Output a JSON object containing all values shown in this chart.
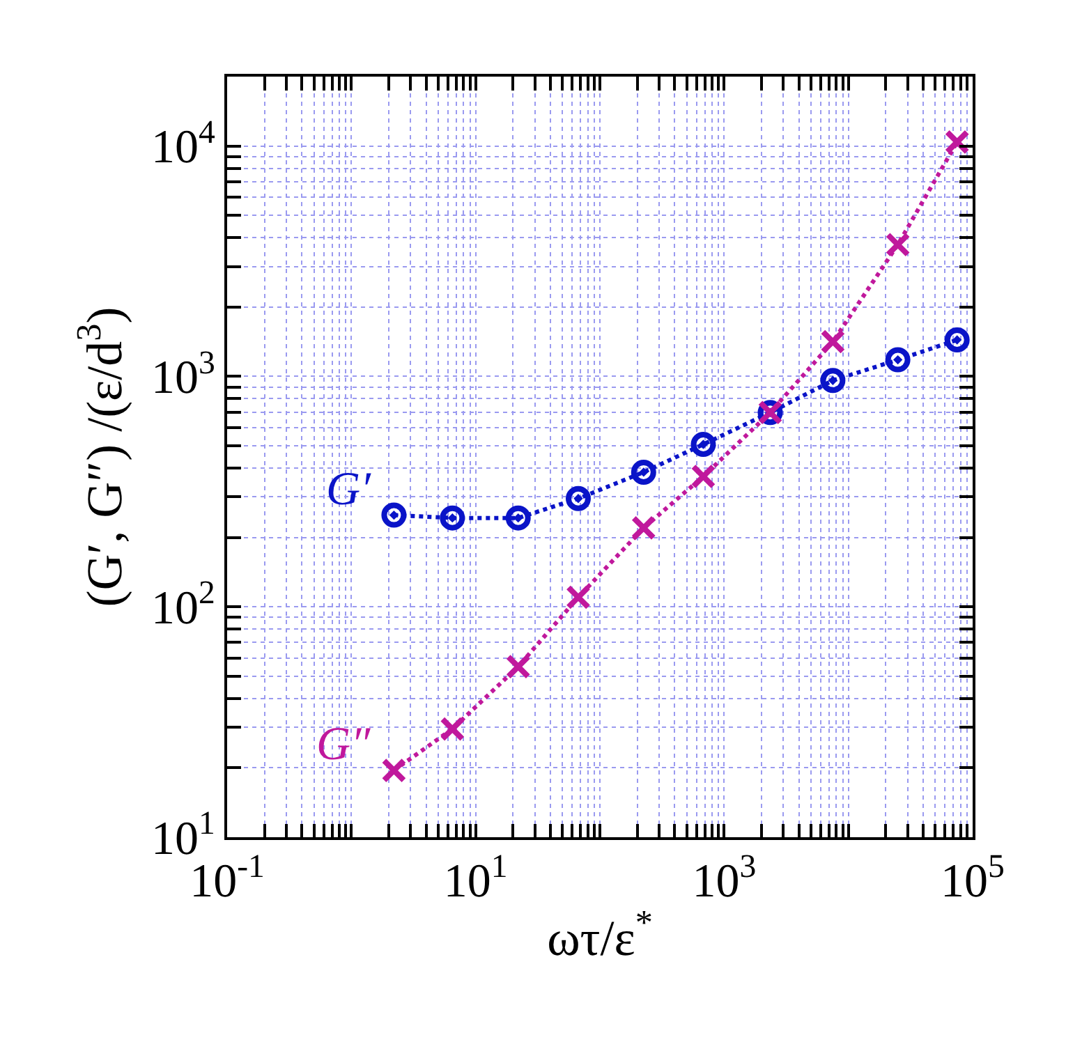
{
  "chart_data": {
    "type": "line",
    "xlabel": "ωτ/ε$^{*}$",
    "ylabel": "(G′, G″) /(ε/d$^{3}$)",
    "x": [
      2.2,
      6.5,
      22,
      67,
      225,
      680,
      2350,
      7500,
      25000,
      75000
    ],
    "series": [
      {
        "name": "G′",
        "color": "#0a14c8",
        "marker": "circle",
        "values": [
          250,
          243,
          243,
          295,
          384,
          507,
          697,
          960,
          1180,
          1440
        ]
      },
      {
        "name": "G″",
        "color": "#c0189c",
        "marker": "cross",
        "values": [
          19.5,
          29.5,
          55,
          110,
          220,
          368,
          697,
          1415,
          3730,
          10400
        ]
      }
    ],
    "log": "xy",
    "line_style": "dotted",
    "grid": true,
    "legend": false,
    "xlim": [
      0.1,
      100000
    ],
    "ylim": [
      10,
      20000
    ],
    "xticks": [
      {
        "value": 0.1,
        "label": "10$^{-1}$"
      },
      {
        "value": 0.2,
        "label": null
      },
      {
        "value": 0.3,
        "label": null
      },
      {
        "value": 0.4,
        "label": null
      },
      {
        "value": 0.5,
        "label": null
      },
      {
        "value": 0.6,
        "label": null
      },
      {
        "value": 0.7,
        "label": null
      },
      {
        "value": 0.8,
        "label": null
      },
      {
        "value": 0.9,
        "label": null
      },
      {
        "value": 1,
        "label": null
      },
      {
        "value": 2,
        "label": null
      },
      {
        "value": 3,
        "label": null
      },
      {
        "value": 4,
        "label": null
      },
      {
        "value": 5,
        "label": null
      },
      {
        "value": 6,
        "label": null
      },
      {
        "value": 7,
        "label": null
      },
      {
        "value": 8,
        "label": null
      },
      {
        "value": 9,
        "label": null
      },
      {
        "value": 10,
        "label": "10$^{1}$"
      },
      {
        "value": 20,
        "label": null
      },
      {
        "value": 30,
        "label": null
      },
      {
        "value": 40,
        "label": null
      },
      {
        "value": 50,
        "label": null
      },
      {
        "value": 60,
        "label": null
      },
      {
        "value": 70,
        "label": null
      },
      {
        "value": 80,
        "label": null
      },
      {
        "value": 90,
        "label": null
      },
      {
        "value": 100,
        "label": null
      },
      {
        "value": 200,
        "label": null
      },
      {
        "value": 300,
        "label": null
      },
      {
        "value": 400,
        "label": null
      },
      {
        "value": 500,
        "label": null
      },
      {
        "value": 600,
        "label": null
      },
      {
        "value": 700,
        "label": null
      },
      {
        "value": 800,
        "label": null
      },
      {
        "value": 900,
        "label": null
      },
      {
        "value": 1000,
        "label": "10$^{3}$"
      },
      {
        "value": 2000,
        "label": null
      },
      {
        "value": 3000,
        "label": null
      },
      {
        "value": 4000,
        "label": null
      },
      {
        "value": 5000,
        "label": null
      },
      {
        "value": 6000,
        "label": null
      },
      {
        "value": 7000,
        "label": null
      },
      {
        "value": 8000,
        "label": null
      },
      {
        "value": 9000,
        "label": null
      },
      {
        "value": 10000,
        "label": null
      },
      {
        "value": 20000,
        "label": null
      },
      {
        "value": 30000,
        "label": null
      },
      {
        "value": 40000,
        "label": null
      },
      {
        "value": 50000,
        "label": null
      },
      {
        "value": 60000,
        "label": null
      },
      {
        "value": 70000,
        "label": null
      },
      {
        "value": 80000,
        "label": null
      },
      {
        "value": 90000,
        "label": null
      },
      {
        "value": 100000,
        "label": "10$^{5}$"
      }
    ],
    "yticks": [
      {
        "value": 10,
        "label": "10$^{1}$"
      },
      {
        "value": 20,
        "label": null
      },
      {
        "value": 30,
        "label": null
      },
      {
        "value": 40,
        "label": null
      },
      {
        "value": 50,
        "label": null
      },
      {
        "value": 60,
        "label": null
      },
      {
        "value": 70,
        "label": null
      },
      {
        "value": 80,
        "label": null
      },
      {
        "value": 90,
        "label": null
      },
      {
        "value": 100,
        "label": "10$^{2}$"
      },
      {
        "value": 200,
        "label": null
      },
      {
        "value": 300,
        "label": null
      },
      {
        "value": 400,
        "label": null
      },
      {
        "value": 500,
        "label": null
      },
      {
        "value": 600,
        "label": null
      },
      {
        "value": 700,
        "label": null
      },
      {
        "value": 800,
        "label": null
      },
      {
        "value": 900,
        "label": null
      },
      {
        "value": 1000,
        "label": "10$^{3}$"
      },
      {
        "value": 2000,
        "label": null
      },
      {
        "value": 3000,
        "label": null
      },
      {
        "value": 4000,
        "label": null
      },
      {
        "value": 5000,
        "label": null
      },
      {
        "value": 6000,
        "label": null
      },
      {
        "value": 7000,
        "label": null
      },
      {
        "value": 8000,
        "label": null
      },
      {
        "value": 9000,
        "label": null
      },
      {
        "value": 10000,
        "label": "10$^{4}$"
      },
      {
        "value": 20000,
        "label": null
      }
    ]
  }
}
